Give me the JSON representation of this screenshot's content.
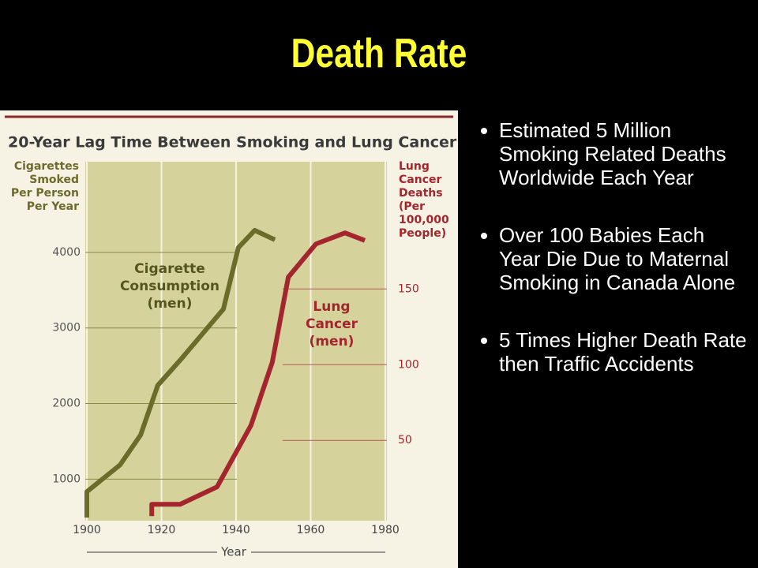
{
  "title": "Death Rate",
  "bullets": [
    "Estimated 5 Million Smoking Related Deaths Worldwide Each Year",
    "Over 100 Babies Each Year Die Due to Maternal Smoking in Canada Alone",
    "5 Times Higher Death Rate then Traffic Accidents"
  ],
  "chart_data": {
    "type": "line",
    "title": "20-Year Lag Time Between Smoking and Lung Cancer",
    "x_label": "Year",
    "y_label": "Cigarettes Smoked Per Person Per Year",
    "y2_label": "Lung Cancer Deaths (Per 100,000 People)",
    "xlim": [
      1900,
      1980
    ],
    "xticks": [
      1900,
      1920,
      1940,
      1960,
      1980
    ],
    "ylim": [
      450,
      5200
    ],
    "yticks": [
      1000,
      2000,
      3000,
      4000
    ],
    "y2lim": [
      -3,
      234
    ],
    "y2ticks": [
      50,
      100,
      150
    ],
    "grid": true,
    "series": [
      {
        "name": "Cigarette Consumption (men)",
        "color": "#6b6b2a",
        "axis": "y",
        "x": [
          1900,
          1900,
          1908.9,
          1914.4,
          1919,
          1925,
          1936.6,
          1940.6,
          1945,
          1950.4
        ],
        "values": [
          490,
          833,
          1188,
          1583,
          2240,
          2573,
          3250,
          4063,
          4292,
          4167
        ]
      },
      {
        "name": "Lung Cancer (men)",
        "color": "#a3262e",
        "axis": "y2",
        "x": [
          1917.4,
          1917.4,
          1925,
          1934.9,
          1944,
          1949.7,
          1954,
          1961.4,
          1969.2,
          1974.5
        ],
        "values": [
          0,
          7.8,
          7.8,
          19.3,
          60,
          101.6,
          157.8,
          179.7,
          187,
          182
        ]
      }
    ]
  }
}
